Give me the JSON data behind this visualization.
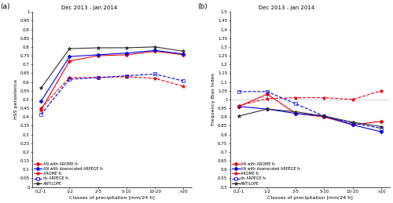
{
  "title": "Dec 2013 - Jan 2014",
  "x_labels": [
    "0.2-1",
    "1-2",
    "2-5",
    "5-10",
    "10-20",
    ">20"
  ],
  "x_positions": [
    0,
    1,
    2,
    3,
    4,
    5
  ],
  "panel_a": {
    "ylabel": "HSS persistence",
    "xlabel": "Classes of precipitation [mm/24 h]",
    "ylim": [
      0,
      1.0
    ],
    "yticks": [
      0,
      0.05,
      0.1,
      0.15,
      0.2,
      0.25,
      0.3,
      0.35,
      0.4,
      0.45,
      0.5,
      0.55,
      0.6,
      0.65,
      0.7,
      0.75,
      0.8,
      0.85,
      0.9,
      0.95,
      1.0
    ],
    "series": {
      "AN_AROME": {
        "label": "AN with AROME fc",
        "values": [
          0.44,
          0.72,
          0.75,
          0.755,
          0.775,
          0.755
        ],
        "color": "#e8000a",
        "linestyle": "-",
        "marker": "D",
        "markersize": 2.5,
        "linewidth": 0.8,
        "markerfacecolor": "#e8000a"
      },
      "AN_ARPEGE": {
        "label": "AN with downscaled ARPEGE fc",
        "values": [
          0.49,
          0.745,
          0.755,
          0.765,
          0.78,
          0.76
        ],
        "color": "#0000e8",
        "linestyle": "-",
        "marker": "D",
        "markersize": 2.5,
        "linewidth": 0.8,
        "markerfacecolor": "#0000e8"
      },
      "AROME_fc": {
        "label": "AROME fc",
        "values": [
          0.45,
          0.625,
          0.625,
          0.63,
          0.62,
          0.575
        ],
        "color": "#e8000a",
        "linestyle": "--",
        "marker": "*",
        "markersize": 3.5,
        "linewidth": 0.8,
        "markerfacecolor": "#e8000a"
      },
      "ds_ARPEGE_fc": {
        "label": "ds ARPEGE fc",
        "values": [
          0.415,
          0.615,
          0.625,
          0.635,
          0.645,
          0.605
        ],
        "color": "#0000e8",
        "linestyle": "--",
        "marker": "s",
        "markersize": 2.5,
        "linewidth": 0.8,
        "markerfacecolor": "none"
      },
      "ANTILOPE": {
        "label": "ANTILOPE",
        "values": [
          0.565,
          0.79,
          0.795,
          0.795,
          0.8,
          0.775
        ],
        "color": "#303030",
        "linestyle": "-",
        "marker": "*",
        "markersize": 3.5,
        "linewidth": 0.8,
        "markerfacecolor": "#303030"
      }
    }
  },
  "panel_b": {
    "ylabel": "Frequency Bias Index",
    "xlabel": "Classes of precipitation [mm/24 h]",
    "ylim": [
      0.5,
      1.5
    ],
    "yticks": [
      0.5,
      0.55,
      0.6,
      0.65,
      0.7,
      0.75,
      0.8,
      0.85,
      0.9,
      0.95,
      1.0,
      1.05,
      1.1,
      1.15,
      1.2,
      1.25,
      1.3,
      1.35,
      1.4,
      1.45,
      1.5
    ],
    "hline": 1.0,
    "series": {
      "AN_AROME": {
        "label": "AN with AROME fc",
        "values": [
          0.96,
          1.03,
          0.92,
          0.9,
          0.855,
          0.875
        ],
        "color": "#e8000a",
        "linestyle": "-",
        "marker": "D",
        "markersize": 2.5,
        "linewidth": 0.8,
        "markerfacecolor": "#e8000a"
      },
      "AN_ARPEGE": {
        "label": "AN with downscaled ARPEGE fc",
        "values": [
          0.96,
          0.945,
          0.92,
          0.905,
          0.855,
          0.815
        ],
        "color": "#0000e8",
        "linestyle": "-",
        "marker": "D",
        "markersize": 2.5,
        "linewidth": 0.8,
        "markerfacecolor": "#0000e8"
      },
      "AROME_fc": {
        "label": "AROME fc",
        "values": [
          0.965,
          1.005,
          1.01,
          1.01,
          1.0,
          1.05
        ],
        "color": "#e8000a",
        "linestyle": "--",
        "marker": "*",
        "markersize": 3.5,
        "linewidth": 0.8,
        "markerfacecolor": "#e8000a"
      },
      "ds_ARPEGE_fc": {
        "label": "ds ARPEGE fc",
        "values": [
          1.045,
          1.045,
          0.975,
          0.905,
          0.865,
          0.835
        ],
        "color": "#0000e8",
        "linestyle": "--",
        "marker": "s",
        "markersize": 2.5,
        "linewidth": 0.8,
        "markerfacecolor": "none"
      },
      "ANTILOPE": {
        "label": "ANTILOPE",
        "values": [
          0.905,
          0.945,
          0.93,
          0.905,
          0.87,
          0.845
        ],
        "color": "#303030",
        "linestyle": "-",
        "marker": "*",
        "markersize": 3.5,
        "linewidth": 0.8,
        "markerfacecolor": "#303030"
      }
    }
  },
  "legend_order": [
    "AN_AROME",
    "AN_ARPEGE",
    "AROME_fc",
    "ds_ARPEGE_fc",
    "ANTILOPE"
  ],
  "label_a": "(a)",
  "label_b": "(b)"
}
